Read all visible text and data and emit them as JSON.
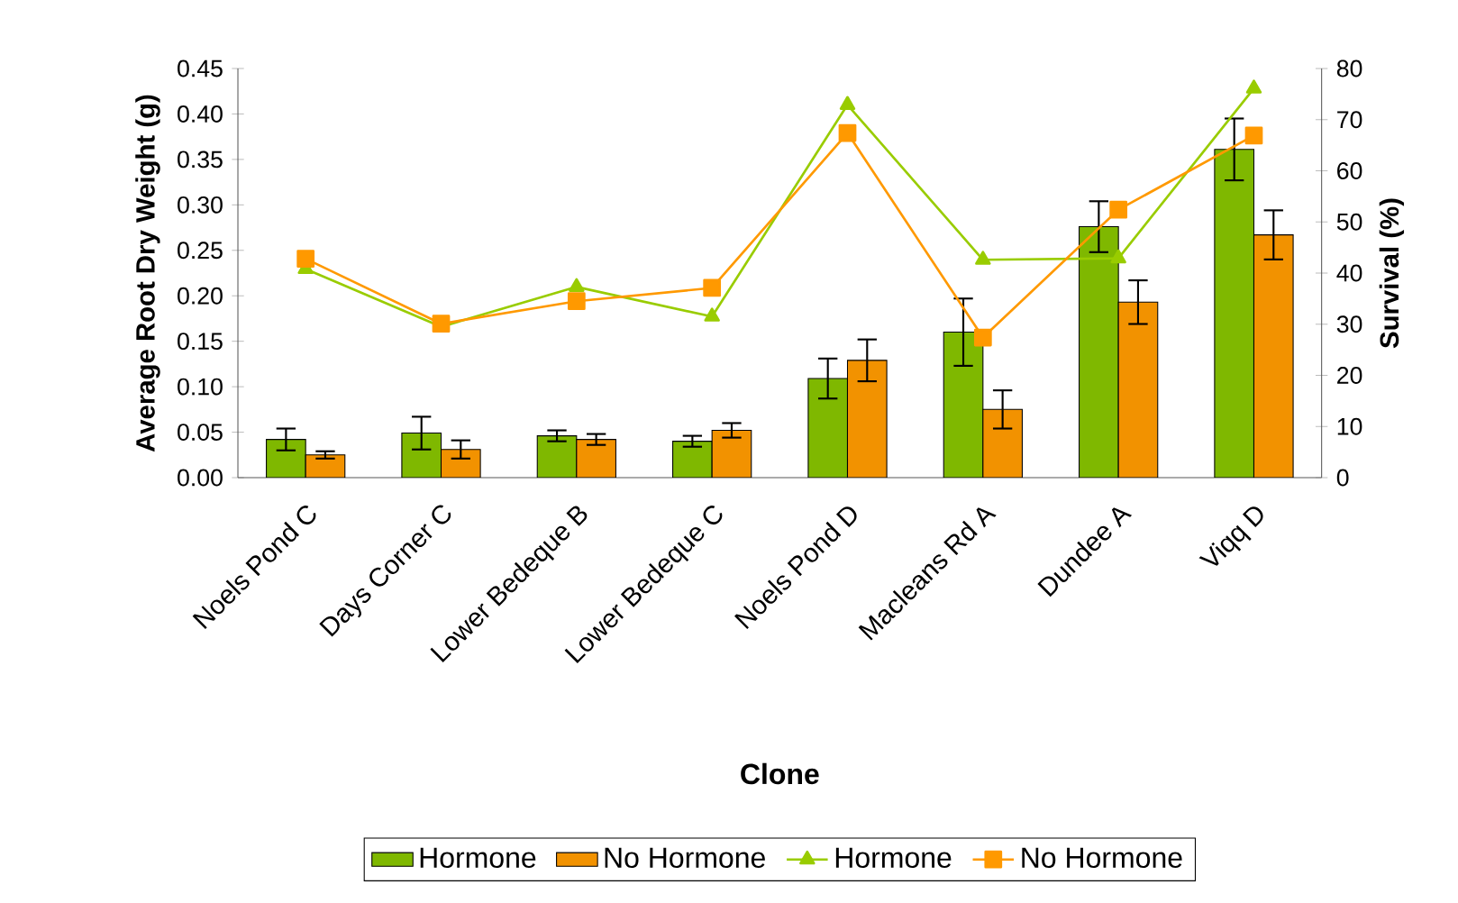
{
  "chart_data": {
    "type": "bar",
    "xlabel": "Clone",
    "ylabel": "Average Root Dry Weight (g)",
    "y2label": "Survival (%)",
    "categories": [
      "Noels Pond C",
      "Days Corner C",
      "Lower Bedeque B",
      "Lower Bedeque C",
      "Noels Pond D",
      "Macleans Rd A",
      "Dundee A",
      "Viqq D"
    ],
    "series": [
      {
        "name": "Hormone",
        "color": "#7fb800",
        "values": [
          0.042,
          0.049,
          0.046,
          0.04,
          0.109,
          0.16,
          0.276,
          0.361
        ],
        "errors": [
          0.012,
          0.018,
          0.006,
          0.006,
          0.022,
          0.037,
          0.028,
          0.034
        ]
      },
      {
        "name": "No Hormone",
        "color": "#f29200",
        "values": [
          0.025,
          0.031,
          0.042,
          0.052,
          0.129,
          0.075,
          0.193,
          0.267
        ],
        "errors": [
          0.004,
          0.01,
          0.006,
          0.008,
          0.023,
          0.021,
          0.024,
          0.027
        ]
      },
      {
        "name": "Hormone",
        "type": "line",
        "axis": "y2",
        "marker": "triangle",
        "color": "#99cc00",
        "values": [
          40.8,
          29.5,
          37.3,
          31.5,
          72.9,
          42.6,
          42.9,
          76.1
        ]
      },
      {
        "name": "No Hormone",
        "type": "line",
        "axis": "y2",
        "marker": "square",
        "color": "#ff9900",
        "values": [
          42.8,
          30.1,
          34.5,
          37.1,
          67.4,
          27.4,
          52.4,
          66.9
        ]
      }
    ],
    "ylim": [
      0,
      0.45
    ],
    "yticks": [
      {
        "value": 0,
        "label": "0.00"
      },
      {
        "value": 0.05,
        "label": "0.05"
      },
      {
        "value": 0.1,
        "label": "0.10"
      },
      {
        "value": 0.15,
        "label": "0.15"
      },
      {
        "value": 0.2,
        "label": "0.20"
      },
      {
        "value": 0.25,
        "label": "0.25"
      },
      {
        "value": 0.3,
        "label": "0.30"
      },
      {
        "value": 0.35,
        "label": "0.35"
      },
      {
        "value": 0.4,
        "label": "0.40"
      },
      {
        "value": 0.45,
        "label": "0.45"
      }
    ],
    "y2lim": [
      0,
      80
    ],
    "y2ticks": [
      0,
      10,
      20,
      30,
      40,
      50,
      60,
      70,
      80
    ],
    "grid": false,
    "legend": "bottom"
  }
}
